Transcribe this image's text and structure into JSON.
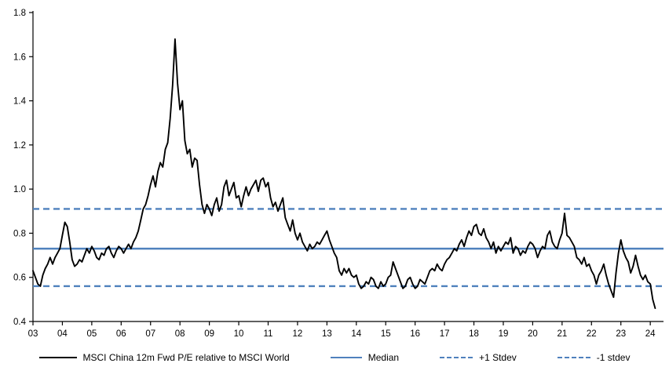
{
  "chart_data": {
    "type": "line",
    "title": "",
    "xlabel": "",
    "ylabel": "",
    "grid": false,
    "legend_position": "bottom",
    "ylim": [
      0.4,
      1.8
    ],
    "xlim": [
      2003,
      2024.45
    ],
    "yticks": [
      0.4,
      0.6,
      0.8,
      1.0,
      1.2,
      1.4,
      1.6,
      1.8
    ],
    "xticks": [
      {
        "value": 2003,
        "label": "03"
      },
      {
        "value": 2004,
        "label": "04"
      },
      {
        "value": 2005,
        "label": "05"
      },
      {
        "value": 2006,
        "label": "06"
      },
      {
        "value": 2007,
        "label": "07"
      },
      {
        "value": 2008,
        "label": "08"
      },
      {
        "value": 2009,
        "label": "09"
      },
      {
        "value": 2010,
        "label": "10"
      },
      {
        "value": 2011,
        "label": "11"
      },
      {
        "value": 2012,
        "label": "12"
      },
      {
        "value": 2013,
        "label": "13"
      },
      {
        "value": 2014,
        "label": "14"
      },
      {
        "value": 2015,
        "label": "15"
      },
      {
        "value": 2016,
        "label": "16"
      },
      {
        "value": 2017,
        "label": "17"
      },
      {
        "value": 2018,
        "label": "18"
      },
      {
        "value": 2019,
        "label": "19"
      },
      {
        "value": 2020,
        "label": "20"
      },
      {
        "value": 2021,
        "label": "21"
      },
      {
        "value": 2022,
        "label": "22"
      },
      {
        "value": 2023,
        "label": "23"
      },
      {
        "value": 2024,
        "label": "24"
      }
    ],
    "reference_lines": [
      {
        "name": "Median",
        "value": 0.73,
        "color": "#4f81bd",
        "style": "solid"
      },
      {
        "name": "Plus 1 Stdev",
        "value": 0.91,
        "color": "#4f81bd",
        "style": "dashed"
      },
      {
        "name": "Minus 1 stdev",
        "value": 0.56,
        "color": "#4f81bd",
        "style": "dashed"
      }
    ],
    "series": [
      {
        "name": "MSCI China 12m Fwd P/E relative to MSCI World",
        "color": "#000000",
        "style": "solid",
        "x_start": 2003.0,
        "x_step": 0.0833333,
        "values": [
          0.63,
          0.6,
          0.57,
          0.56,
          0.61,
          0.64,
          0.66,
          0.69,
          0.66,
          0.69,
          0.71,
          0.73,
          0.79,
          0.85,
          0.83,
          0.76,
          0.68,
          0.65,
          0.66,
          0.68,
          0.67,
          0.7,
          0.73,
          0.71,
          0.74,
          0.72,
          0.69,
          0.68,
          0.71,
          0.7,
          0.73,
          0.74,
          0.71,
          0.69,
          0.72,
          0.74,
          0.73,
          0.71,
          0.73,
          0.75,
          0.73,
          0.76,
          0.78,
          0.81,
          0.86,
          0.91,
          0.93,
          0.97,
          1.02,
          1.06,
          1.01,
          1.08,
          1.12,
          1.1,
          1.18,
          1.21,
          1.32,
          1.47,
          1.68,
          1.48,
          1.36,
          1.4,
          1.22,
          1.16,
          1.18,
          1.1,
          1.14,
          1.13,
          1.02,
          0.93,
          0.89,
          0.93,
          0.91,
          0.88,
          0.93,
          0.96,
          0.9,
          0.93,
          1.01,
          1.04,
          0.97,
          1.0,
          1.03,
          0.96,
          0.97,
          0.92,
          0.97,
          1.01,
          0.97,
          1.0,
          1.02,
          1.04,
          0.99,
          1.04,
          1.05,
          1.01,
          1.03,
          0.96,
          0.92,
          0.94,
          0.9,
          0.93,
          0.96,
          0.87,
          0.84,
          0.81,
          0.86,
          0.8,
          0.77,
          0.8,
          0.76,
          0.74,
          0.72,
          0.75,
          0.73,
          0.74,
          0.76,
          0.75,
          0.77,
          0.79,
          0.81,
          0.77,
          0.74,
          0.71,
          0.69,
          0.63,
          0.61,
          0.64,
          0.62,
          0.64,
          0.61,
          0.6,
          0.61,
          0.57,
          0.55,
          0.56,
          0.58,
          0.57,
          0.6,
          0.59,
          0.56,
          0.55,
          0.58,
          0.56,
          0.57,
          0.6,
          0.61,
          0.67,
          0.64,
          0.61,
          0.58,
          0.55,
          0.56,
          0.59,
          0.6,
          0.57,
          0.55,
          0.56,
          0.59,
          0.58,
          0.57,
          0.6,
          0.63,
          0.64,
          0.63,
          0.66,
          0.64,
          0.63,
          0.66,
          0.68,
          0.69,
          0.71,
          0.73,
          0.72,
          0.75,
          0.77,
          0.74,
          0.78,
          0.81,
          0.79,
          0.83,
          0.84,
          0.8,
          0.79,
          0.82,
          0.78,
          0.76,
          0.73,
          0.76,
          0.71,
          0.74,
          0.72,
          0.74,
          0.76,
          0.75,
          0.78,
          0.71,
          0.74,
          0.73,
          0.7,
          0.72,
          0.71,
          0.74,
          0.76,
          0.75,
          0.73,
          0.69,
          0.72,
          0.74,
          0.73,
          0.79,
          0.81,
          0.76,
          0.74,
          0.73,
          0.77,
          0.8,
          0.89,
          0.79,
          0.78,
          0.76,
          0.74,
          0.69,
          0.68,
          0.66,
          0.69,
          0.65,
          0.66,
          0.63,
          0.61,
          0.57,
          0.61,
          0.63,
          0.66,
          0.61,
          0.57,
          0.54,
          0.51,
          0.62,
          0.71,
          0.77,
          0.72,
          0.69,
          0.67,
          0.62,
          0.65,
          0.7,
          0.65,
          0.61,
          0.59,
          0.61,
          0.58,
          0.57,
          0.5,
          0.46
        ]
      }
    ]
  },
  "legend": {
    "items": [
      {
        "label": "MSCI China 12m Fwd P/E relative to MSCI World",
        "style": "solid-black"
      },
      {
        "label": "Median",
        "style": "solid-blue"
      },
      {
        "label": "+1 Stdev",
        "style": "dashed-blue"
      },
      {
        "label": "-1 stdev",
        "style": "dashed-blue"
      }
    ]
  },
  "colors": {
    "series": "#000000",
    "accent": "#4f81bd",
    "axis": "#000000",
    "background": "#ffffff"
  }
}
